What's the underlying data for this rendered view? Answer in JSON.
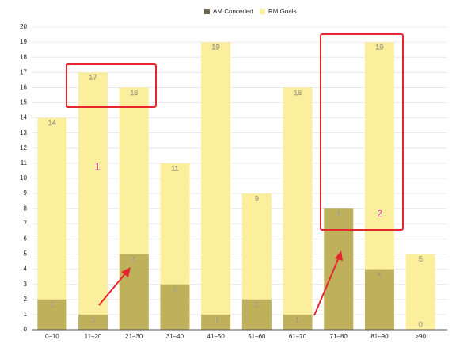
{
  "chart_data": {
    "type": "bar",
    "categories": [
      "0–10",
      "11–20",
      "21–30",
      "31–40",
      "41–50",
      "51–60",
      "61–70",
      "71–80",
      "81–90",
      ">90"
    ],
    "series": [
      {
        "name": "AM Conceded",
        "color": "#bfb15c",
        "values": [
          2,
          1,
          5,
          3,
          1,
          2,
          1,
          8,
          4,
          0
        ]
      },
      {
        "name": "RM Goals",
        "color": "#fbef9e",
        "values": [
          14,
          17,
          16,
          11,
          19,
          9,
          16,
          8,
          19,
          5
        ]
      }
    ],
    "ylim": [
      0,
      20
    ],
    "yticks": [
      0,
      1,
      2,
      3,
      4,
      5,
      6,
      7,
      8,
      9,
      10,
      11,
      12,
      13,
      14,
      15,
      16,
      17,
      18,
      19,
      20
    ],
    "annotations": [
      "1",
      "2"
    ]
  }
}
